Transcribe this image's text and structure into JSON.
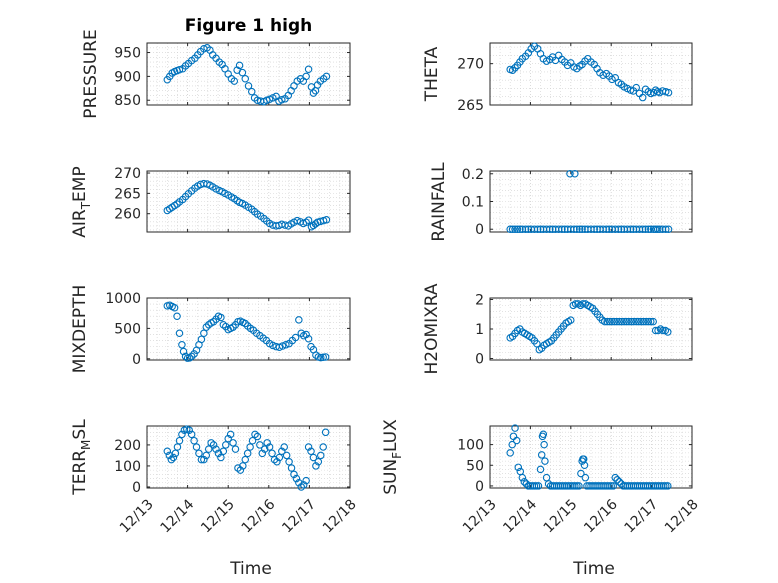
{
  "colors": {
    "marker": "#0072BD",
    "axis": "#262626",
    "grid": "#d0d0d0",
    "background": "#ffffff"
  },
  "chart_data": [
    {
      "type": "scatter",
      "title": "Figure 1 high",
      "ylabel": "PRESSURE",
      "xlabel": "",
      "ylim": [
        840,
        970
      ],
      "yticks": [
        "850",
        "900",
        "950"
      ],
      "ytick_values": [
        850,
        900,
        950
      ],
      "xlim": [
        0,
        5
      ],
      "grid": true,
      "marker": "circle",
      "x": [
        0.5,
        0.56,
        0.62,
        0.68,
        0.74,
        0.8,
        0.88,
        0.95,
        1.02,
        1.1,
        1.18,
        1.25,
        1.32,
        1.4,
        1.48,
        1.55,
        1.62,
        1.7,
        1.78,
        1.85,
        1.92,
        2.0,
        2.08,
        2.15,
        2.22,
        2.28,
        2.35,
        2.42,
        2.5,
        2.58,
        2.65,
        2.72,
        2.8,
        2.88,
        2.95,
        3.02,
        3.1,
        3.18,
        3.25,
        3.32,
        3.4,
        3.48,
        3.55,
        3.62,
        3.7,
        3.78,
        3.85,
        3.92,
        3.98,
        4.05,
        4.1,
        4.15,
        4.2,
        4.27,
        4.35,
        4.42
      ],
      "y": [
        893,
        900,
        907,
        910,
        912,
        914,
        916,
        922,
        927,
        933,
        938,
        945,
        952,
        958,
        960,
        955,
        945,
        938,
        930,
        925,
        916,
        905,
        895,
        890,
        913,
        923,
        908,
        895,
        880,
        868,
        855,
        850,
        848,
        847,
        850,
        852,
        855,
        858,
        848,
        851,
        853,
        860,
        870,
        880,
        890,
        895,
        890,
        900,
        915,
        878,
        865,
        870,
        882,
        890,
        895,
        900
      ]
    },
    {
      "type": "scatter",
      "title": "",
      "ylabel": "THETA",
      "xlabel": "",
      "ylim": [
        265,
        272.5
      ],
      "yticks": [
        "265",
        "270"
      ],
      "ytick_values": [
        265,
        270
      ],
      "xlim": [
        0,
        5
      ],
      "grid": true,
      "marker": "circle",
      "x": [
        0.5,
        0.56,
        0.62,
        0.68,
        0.74,
        0.8,
        0.88,
        0.95,
        1.02,
        1.1,
        1.18,
        1.25,
        1.32,
        1.4,
        1.48,
        1.55,
        1.62,
        1.7,
        1.78,
        1.85,
        1.92,
        2.0,
        2.08,
        2.15,
        2.22,
        2.28,
        2.35,
        2.42,
        2.5,
        2.58,
        2.65,
        2.72,
        2.8,
        2.88,
        2.95,
        3.02,
        3.1,
        3.18,
        3.25,
        3.32,
        3.4,
        3.48,
        3.55,
        3.62,
        3.7,
        3.78,
        3.85,
        3.92,
        3.98,
        4.05,
        4.1,
        4.15,
        4.2,
        4.27,
        4.35,
        4.42
      ],
      "y": [
        269.3,
        269.2,
        269.5,
        269.8,
        270.2,
        270.6,
        270.9,
        271.3,
        271.8,
        272.1,
        271.8,
        271.2,
        270.6,
        270.3,
        270.5,
        270.8,
        270.4,
        271.0,
        270.5,
        270.2,
        269.8,
        270.1,
        269.6,
        269.4,
        269.7,
        269.9,
        270.3,
        270.6,
        270.2,
        269.9,
        269.4,
        268.9,
        268.6,
        268.8,
        268.5,
        268.1,
        268.3,
        267.7,
        267.5,
        267.2,
        267.0,
        266.8,
        266.7,
        267.1,
        266.4,
        265.9,
        266.9,
        266.6,
        266.4,
        266.5,
        266.8,
        266.6,
        266.5,
        266.7,
        266.6,
        266.5
      ]
    },
    {
      "type": "scatter",
      "title": "",
      "ylabel": "AIR_TEMP",
      "xlabel": "",
      "ylim": [
        255.5,
        270.5
      ],
      "yticks": [
        "260",
        "265",
        "270"
      ],
      "ytick_values": [
        260,
        265,
        270
      ],
      "xlim": [
        0,
        5
      ],
      "grid": true,
      "marker": "circle",
      "x": [
        0.5,
        0.56,
        0.62,
        0.68,
        0.74,
        0.8,
        0.88,
        0.95,
        1.02,
        1.1,
        1.18,
        1.25,
        1.32,
        1.4,
        1.48,
        1.55,
        1.62,
        1.7,
        1.78,
        1.85,
        1.92,
        2.0,
        2.08,
        2.15,
        2.22,
        2.28,
        2.35,
        2.42,
        2.5,
        2.58,
        2.65,
        2.72,
        2.8,
        2.88,
        2.95,
        3.02,
        3.1,
        3.18,
        3.25,
        3.32,
        3.4,
        3.48,
        3.55,
        3.62,
        3.7,
        3.78,
        3.85,
        3.92,
        3.98,
        4.05,
        4.1,
        4.15,
        4.2,
        4.27,
        4.35,
        4.42
      ],
      "y": [
        260.8,
        261.2,
        261.6,
        262.0,
        262.4,
        262.9,
        263.5,
        264.2,
        264.9,
        265.6,
        266.3,
        266.8,
        267.2,
        267.4,
        267.3,
        267.0,
        266.6,
        266.1,
        265.7,
        265.4,
        265.0,
        264.6,
        264.1,
        263.7,
        263.2,
        262.8,
        262.5,
        262.1,
        261.6,
        261.1,
        260.5,
        259.9,
        259.4,
        258.8,
        258.2,
        257.6,
        257.2,
        257.0,
        257.1,
        257.4,
        257.2,
        257.0,
        257.5,
        257.9,
        258.3,
        258.0,
        257.6,
        257.9,
        258.4,
        256.8,
        257.1,
        257.5,
        257.9,
        258.1,
        258.3,
        258.5
      ]
    },
    {
      "type": "scatter",
      "title": "",
      "ylabel": "RAINFALL",
      "xlabel": "",
      "ylim": [
        -0.01,
        0.21
      ],
      "yticks": [
        "0",
        "0.1",
        "0.2"
      ],
      "ytick_values": [
        0,
        0.1,
        0.2
      ],
      "xlim": [
        0,
        5
      ],
      "grid": true,
      "marker": "circle",
      "x": [
        0.5,
        0.56,
        0.62,
        0.68,
        0.74,
        0.8,
        0.88,
        0.95,
        1.02,
        1.1,
        1.18,
        1.25,
        1.32,
        1.4,
        1.48,
        1.55,
        1.62,
        1.7,
        1.78,
        1.85,
        1.92,
        2.0,
        2.08,
        2.15,
        2.22,
        2.28,
        2.35,
        2.42,
        2.5,
        2.58,
        2.65,
        2.72,
        2.8,
        2.88,
        2.95,
        3.02,
        3.1,
        3.18,
        3.25,
        3.32,
        3.4,
        3.48,
        3.55,
        3.62,
        3.7,
        3.78,
        3.85,
        3.92,
        3.98,
        4.05,
        4.1,
        4.15,
        4.2,
        4.27,
        4.35,
        4.42,
        1.98,
        2.1
      ],
      "y": [
        0,
        0,
        0,
        0,
        0,
        0,
        0,
        0,
        0,
        0,
        0,
        0,
        0,
        0,
        0,
        0,
        0,
        0,
        0,
        0,
        0,
        0,
        0,
        0,
        0,
        0,
        0,
        0,
        0,
        0,
        0,
        0,
        0,
        0,
        0,
        0,
        0,
        0,
        0,
        0,
        0,
        0,
        0,
        0,
        0,
        0,
        0,
        0,
        0,
        0,
        0,
        0,
        0,
        0,
        0,
        0,
        0.2,
        0.2
      ]
    },
    {
      "type": "scatter",
      "title": "",
      "ylabel": "MIXDEPTH",
      "xlabel": "",
      "ylim": [
        -20,
        1000
      ],
      "yticks": [
        "0",
        "500",
        "1000"
      ],
      "ytick_values": [
        0,
        500,
        1000
      ],
      "xlim": [
        0,
        5
      ],
      "grid": true,
      "marker": "circle",
      "x": [
        0.5,
        0.56,
        0.62,
        0.68,
        0.74,
        0.8,
        0.86,
        0.9,
        0.95,
        1.0,
        1.05,
        1.1,
        1.16,
        1.22,
        1.28,
        1.34,
        1.4,
        1.46,
        1.52,
        1.58,
        1.64,
        1.7,
        1.76,
        1.82,
        1.88,
        1.94,
        2.0,
        2.06,
        2.12,
        2.18,
        2.24,
        2.3,
        2.36,
        2.42,
        2.48,
        2.55,
        2.62,
        2.7,
        2.78,
        2.86,
        2.94,
        3.02,
        3.1,
        3.18,
        3.26,
        3.34,
        3.42,
        3.5,
        3.58,
        3.66,
        3.74,
        3.8,
        3.86,
        3.92,
        3.98,
        4.04,
        4.1,
        4.16,
        4.22,
        4.28,
        4.34,
        4.4
      ],
      "y": [
        870,
        880,
        860,
        840,
        700,
        420,
        230,
        120,
        40,
        10,
        15,
        40,
        80,
        140,
        230,
        320,
        420,
        520,
        560,
        590,
        610,
        650,
        700,
        680,
        560,
        530,
        480,
        500,
        520,
        560,
        610,
        620,
        600,
        580,
        540,
        500,
        470,
        420,
        380,
        340,
        300,
        250,
        220,
        200,
        190,
        210,
        230,
        250,
        300,
        350,
        640,
        420,
        380,
        400,
        330,
        200,
        150,
        60,
        30,
        20,
        25,
        30
      ]
    },
    {
      "type": "scatter",
      "title": "",
      "ylabel": "H2OMIXRA",
      "xlabel": "",
      "ylim": [
        -0.05,
        2.05
      ],
      "yticks": [
        "0",
        "1",
        "2"
      ],
      "ytick_values": [
        0,
        1,
        2
      ],
      "xlim": [
        0,
        5
      ],
      "grid": true,
      "marker": "circle",
      "x": [
        0.5,
        0.56,
        0.62,
        0.68,
        0.74,
        0.8,
        0.86,
        0.92,
        0.98,
        1.04,
        1.1,
        1.16,
        1.22,
        1.28,
        1.34,
        1.4,
        1.46,
        1.52,
        1.58,
        1.64,
        1.7,
        1.76,
        1.82,
        1.88,
        1.94,
        2.0,
        2.06,
        2.12,
        2.18,
        2.24,
        2.3,
        2.36,
        2.42,
        2.48,
        2.54,
        2.6,
        2.66,
        2.72,
        2.78,
        2.84,
        2.9,
        2.96,
        3.02,
        3.08,
        3.14,
        3.2,
        3.26,
        3.32,
        3.38,
        3.44,
        3.5,
        3.56,
        3.62,
        3.68,
        3.74,
        3.8,
        3.86,
        3.92,
        3.98,
        4.04,
        4.1,
        4.16,
        4.22,
        4.28,
        4.34,
        4.4
      ],
      "y": [
        0.7,
        0.75,
        0.85,
        0.95,
        1.0,
        0.9,
        0.85,
        0.8,
        0.75,
        0.7,
        0.6,
        0.5,
        0.3,
        0.35,
        0.45,
        0.5,
        0.55,
        0.6,
        0.7,
        0.8,
        0.9,
        1.0,
        1.1,
        1.2,
        1.25,
        1.3,
        1.8,
        1.85,
        1.85,
        1.8,
        1.85,
        1.85,
        1.8,
        1.75,
        1.7,
        1.6,
        1.5,
        1.4,
        1.3,
        1.25,
        1.25,
        1.25,
        1.25,
        1.25,
        1.25,
        1.25,
        1.25,
        1.25,
        1.25,
        1.25,
        1.25,
        1.25,
        1.25,
        1.25,
        1.25,
        1.25,
        1.25,
        1.25,
        1.25,
        1.25,
        0.95,
        0.95,
        1.0,
        0.95,
        0.95,
        0.9
      ]
    },
    {
      "type": "scatter",
      "title": "",
      "ylabel": "TERR_MSL",
      "xlabel": "Time",
      "ylim": [
        -5,
        290
      ],
      "yticks": [
        "0",
        "100",
        "200"
      ],
      "ytick_values": [
        0,
        100,
        200
      ],
      "xlim": [
        0,
        5
      ],
      "xticks": [
        "12/13",
        "12/14",
        "12/15",
        "12/16",
        "12/17",
        "12/18"
      ],
      "xtick_values": [
        0,
        1,
        2,
        3,
        4,
        5
      ],
      "grid": true,
      "marker": "circle",
      "x": [
        0.5,
        0.55,
        0.6,
        0.65,
        0.7,
        0.75,
        0.8,
        0.86,
        0.92,
        0.98,
        1.04,
        1.1,
        1.16,
        1.22,
        1.28,
        1.34,
        1.4,
        1.46,
        1.52,
        1.58,
        1.64,
        1.7,
        1.76,
        1.82,
        1.88,
        1.94,
        2.0,
        2.06,
        2.12,
        2.18,
        2.24,
        2.3,
        2.36,
        2.42,
        2.48,
        2.54,
        2.6,
        2.66,
        2.72,
        2.78,
        2.84,
        2.9,
        2.96,
        3.02,
        3.08,
        3.14,
        3.2,
        3.26,
        3.32,
        3.38,
        3.44,
        3.5,
        3.56,
        3.62,
        3.68,
        3.74,
        3.8,
        3.86,
        3.92,
        3.98,
        4.04,
        4.1,
        4.16,
        4.22,
        4.28,
        4.34,
        4.4
      ],
      "y": [
        170,
        150,
        130,
        140,
        160,
        190,
        220,
        250,
        270,
        275,
        270,
        250,
        220,
        190,
        160,
        130,
        130,
        150,
        180,
        210,
        200,
        180,
        160,
        140,
        170,
        200,
        230,
        250,
        210,
        180,
        90,
        80,
        100,
        130,
        160,
        190,
        220,
        250,
        240,
        200,
        160,
        180,
        210,
        190,
        160,
        130,
        120,
        140,
        170,
        190,
        150,
        120,
        90,
        60,
        40,
        20,
        0,
        10,
        30,
        190,
        170,
        140,
        100,
        120,
        150,
        190,
        260
      ]
    },
    {
      "type": "scatter",
      "title": "",
      "ylabel": "SUN_FLUX",
      "xlabel": "Time",
      "ylim": [
        -5,
        145
      ],
      "yticks": [
        "0",
        "50",
        "100"
      ],
      "ytick_values": [
        0,
        50,
        100
      ],
      "xlim": [
        0,
        5
      ],
      "xticks": [
        "12/13",
        "12/14",
        "12/15",
        "12/16",
        "12/17",
        "12/18"
      ],
      "xtick_values": [
        0,
        1,
        2,
        3,
        4,
        5
      ],
      "grid": true,
      "marker": "circle",
      "x": [
        0.5,
        0.55,
        0.58,
        0.62,
        0.66,
        0.7,
        0.75,
        0.8,
        0.85,
        0.9,
        0.95,
        1.0,
        1.05,
        1.1,
        1.15,
        1.2,
        1.25,
        1.28,
        1.3,
        1.32,
        1.34,
        1.36,
        1.4,
        1.45,
        1.5,
        1.55,
        1.6,
        1.65,
        1.7,
        1.75,
        1.8,
        1.85,
        1.9,
        1.95,
        2.0,
        2.05,
        2.1,
        2.15,
        2.2,
        2.25,
        2.28,
        2.3,
        2.32,
        2.34,
        2.36,
        2.4,
        2.45,
        2.5,
        2.55,
        2.6,
        2.65,
        2.7,
        2.75,
        2.8,
        2.85,
        2.9,
        2.95,
        3.0,
        3.05,
        3.1,
        3.15,
        3.2,
        3.25,
        3.3,
        3.35,
        3.4,
        3.45,
        3.5,
        3.55,
        3.6,
        3.65,
        3.7,
        3.75,
        3.8,
        3.85,
        3.9,
        3.95,
        4.0,
        4.05,
        4.1,
        4.15,
        4.2,
        4.25,
        4.3,
        4.35,
        4.4
      ],
      "y": [
        80,
        100,
        120,
        140,
        110,
        45,
        35,
        20,
        10,
        5,
        0,
        0,
        0,
        0,
        0,
        0,
        40,
        75,
        120,
        125,
        100,
        60,
        20,
        5,
        0,
        0,
        0,
        0,
        0,
        0,
        0,
        0,
        0,
        0,
        0,
        0,
        0,
        0,
        0,
        30,
        60,
        65,
        65,
        50,
        20,
        0,
        0,
        0,
        0,
        0,
        0,
        0,
        0,
        0,
        0,
        0,
        0,
        0,
        0,
        20,
        15,
        10,
        5,
        0,
        0,
        0,
        0,
        0,
        0,
        0,
        0,
        0,
        0,
        0,
        0,
        0,
        0,
        0,
        0,
        0,
        0,
        0,
        0,
        0,
        0,
        0
      ]
    }
  ]
}
